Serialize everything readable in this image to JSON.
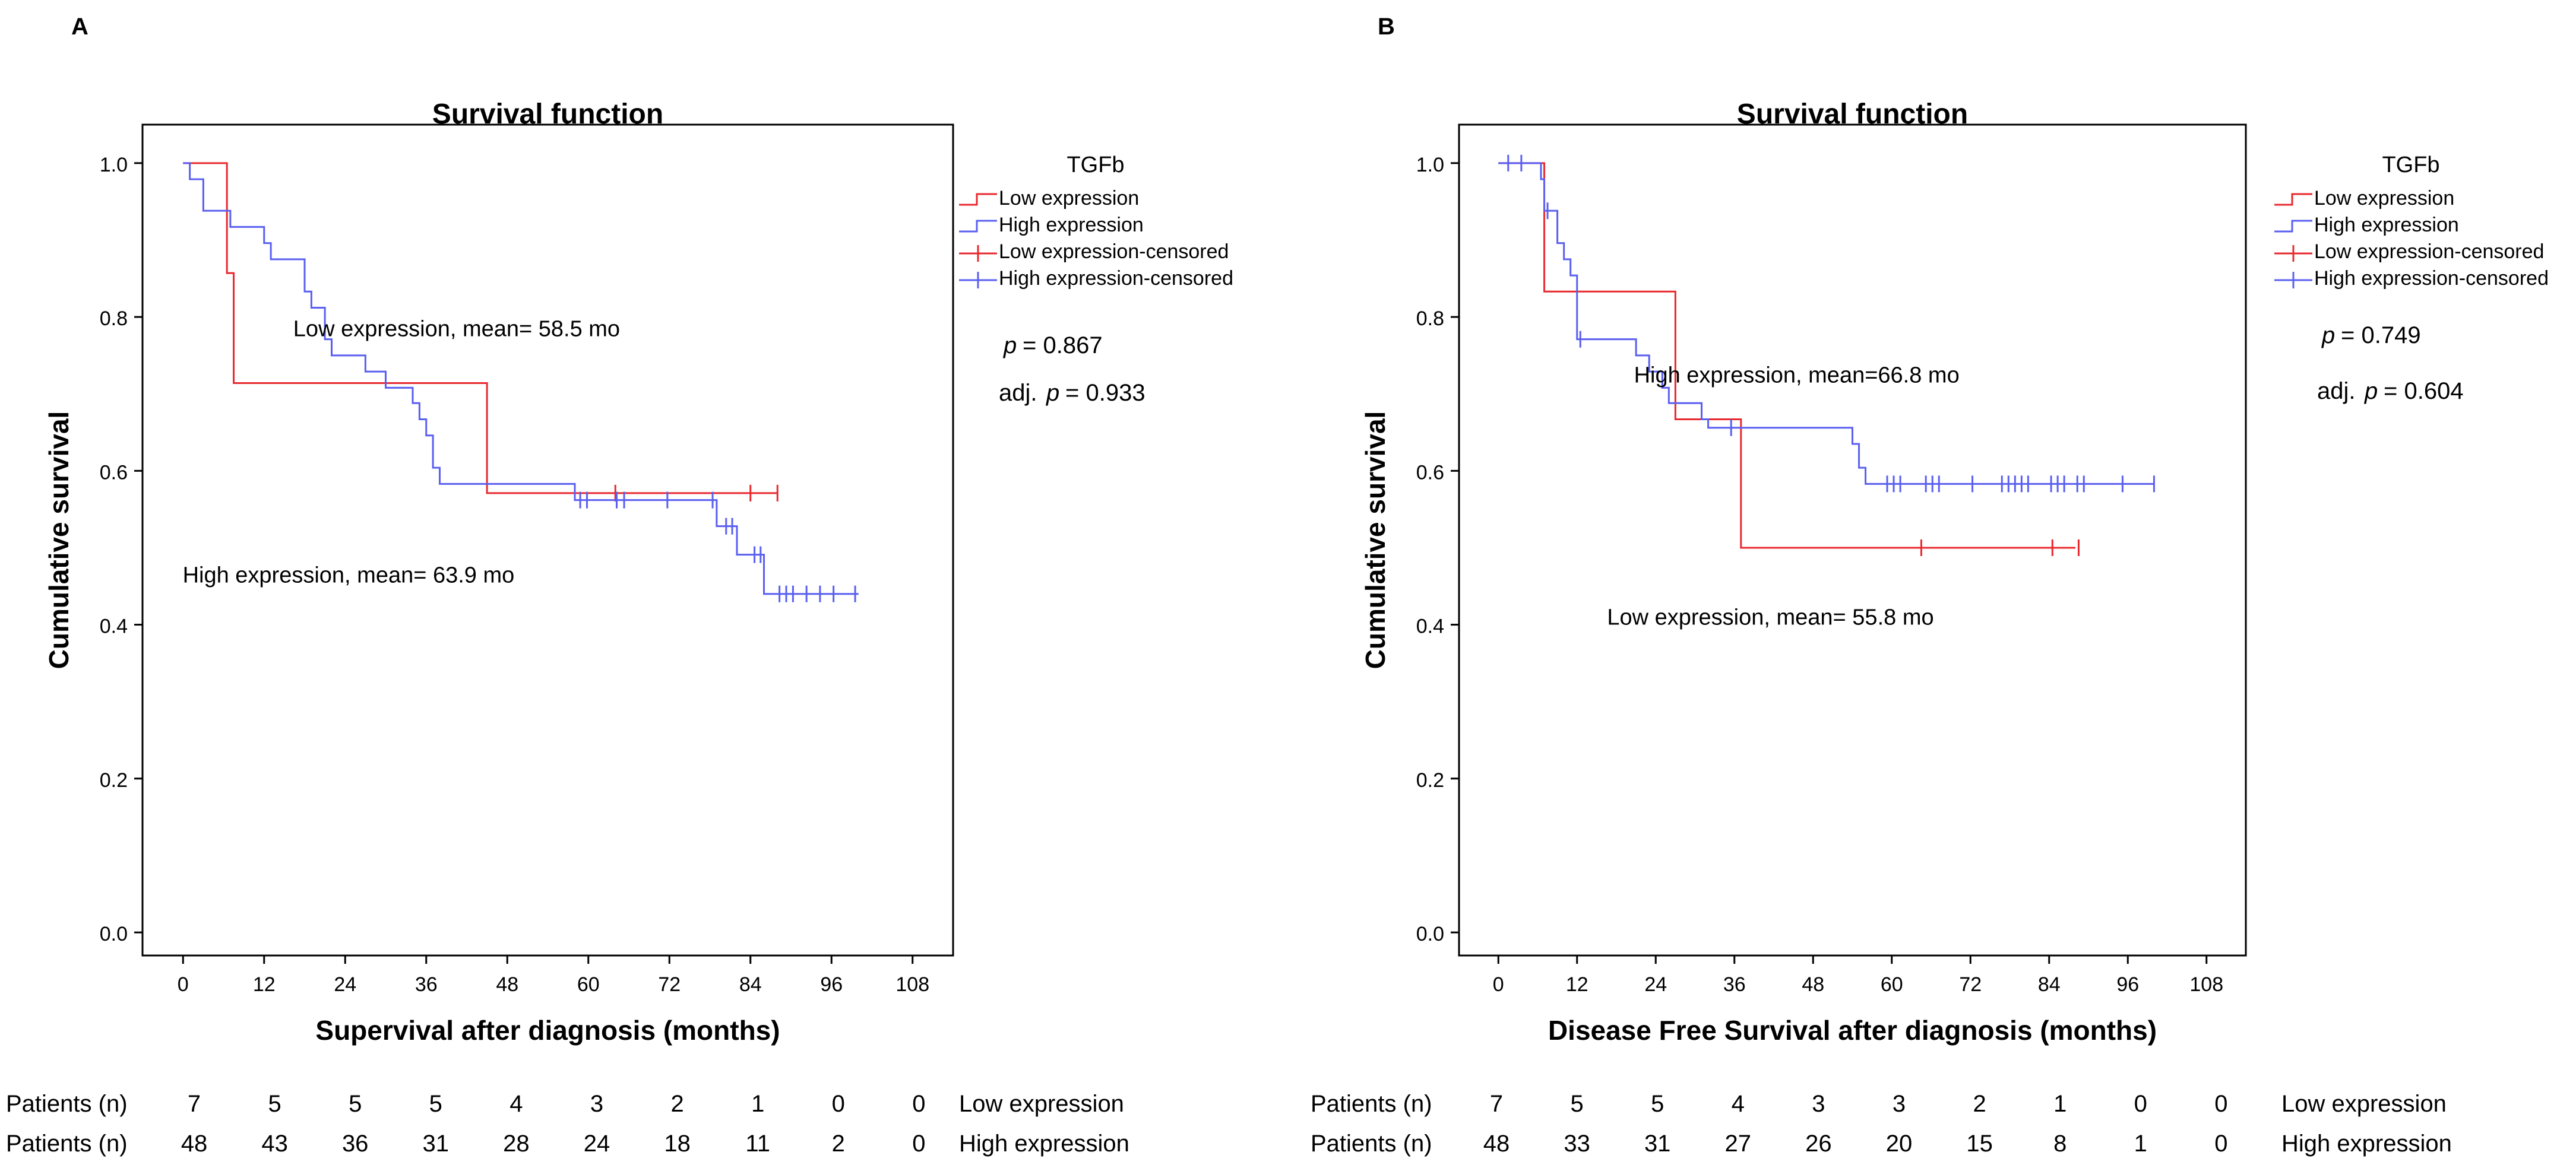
{
  "figure": {
    "y_ticks": [
      "1.0",
      "0.8",
      "0.6",
      "0.4",
      "0.2",
      "0.0"
    ],
    "x_ticks": [
      "0",
      "12",
      "24",
      "36",
      "48",
      "60",
      "72",
      "84",
      "96",
      "108"
    ],
    "legend_title": "TGFb",
    "legend_items": [
      "Low expression",
      "High expression",
      "Low expression-censored",
      "High expression-censored"
    ],
    "row_label": "Patients (n)",
    "colors": {
      "low": "#e8292f",
      "high": "#5a5ff0",
      "axis": "#000000"
    }
  },
  "chart_data": [
    {
      "panel_label": "A",
      "type": "line",
      "subtype": "kaplan-meier",
      "title": "Survival function",
      "xlabel": "Supervival after diagnosis (months)",
      "ylabel": "Cumulative survival",
      "xlim": [
        -6,
        114
      ],
      "ylim": [
        -0.03,
        1.05
      ],
      "p_label": "p",
      "p_value": "= 0.867",
      "adj_prefix": "adj.",
      "adj_p_label": "p",
      "adj_p_value": "= 0.933",
      "annotations": [
        {
          "text": "Low expression, mean= 58.5 mo",
          "x": 40.5,
          "y": 0.775
        },
        {
          "text": "High expression, mean= 63.9 mo",
          "x": 24.5,
          "y": 0.455
        }
      ],
      "series": [
        {
          "name": "Low expression",
          "color_key": "low",
          "steps": [
            [
              0,
              1.0
            ],
            [
              6.5,
              0.857
            ],
            [
              7.5,
              0.714
            ],
            [
              45,
              0.571
            ],
            [
              88,
              0.571
            ]
          ],
          "censored": [
            [
              64,
              0.571
            ],
            [
              84,
              0.571
            ],
            [
              88,
              0.571
            ]
          ]
        },
        {
          "name": "High expression",
          "color_key": "high",
          "steps": [
            [
              0,
              1.0
            ],
            [
              1,
              0.979
            ],
            [
              3,
              0.938
            ],
            [
              7,
              0.917
            ],
            [
              12,
              0.896
            ],
            [
              13,
              0.875
            ],
            [
              18,
              0.833
            ],
            [
              19,
              0.812
            ],
            [
              21,
              0.771
            ],
            [
              22,
              0.75
            ],
            [
              27,
              0.729
            ],
            [
              30,
              0.708
            ],
            [
              34,
              0.688
            ],
            [
              35,
              0.667
            ],
            [
              36,
              0.646
            ],
            [
              37,
              0.604
            ],
            [
              38,
              0.583
            ],
            [
              58,
              0.562
            ],
            [
              79,
              0.528
            ],
            [
              82,
              0.491
            ],
            [
              86,
              0.44
            ],
            [
              100,
              0.44
            ]
          ],
          "censored": [
            [
              58.8,
              0.562
            ],
            [
              59.8,
              0.562
            ],
            [
              64.2,
              0.562
            ],
            [
              65.3,
              0.562
            ],
            [
              71.7,
              0.562
            ],
            [
              78.4,
              0.562
            ],
            [
              80.4,
              0.528
            ],
            [
              81.3,
              0.528
            ],
            [
              84.6,
              0.491
            ],
            [
              85.5,
              0.491
            ],
            [
              88.3,
              0.44
            ],
            [
              89.3,
              0.44
            ],
            [
              90.3,
              0.44
            ],
            [
              92.3,
              0.44
            ],
            [
              94.3,
              0.44
            ],
            [
              96.3,
              0.44
            ],
            [
              99.5,
              0.44
            ]
          ]
        }
      ],
      "risk_table": {
        "rows": [
          {
            "counts": [
              "7",
              "5",
              "5",
              "5",
              "4",
              "3",
              "2",
              "1",
              "0",
              "0"
            ],
            "group": "Low expression"
          },
          {
            "counts": [
              "48",
              "43",
              "36",
              "31",
              "28",
              "24",
              "18",
              "11",
              "2",
              "0"
            ],
            "group": "High expression"
          }
        ]
      }
    },
    {
      "panel_label": "B",
      "type": "line",
      "subtype": "kaplan-meier",
      "title": "Survival function",
      "xlabel": "Disease Free Survival after diagnosis (months)",
      "ylabel": "Cumulative survival",
      "xlim": [
        -6,
        114
      ],
      "ylim": [
        -0.03,
        1.05
      ],
      "p_label": "p",
      "p_value": "= 0.749",
      "adj_prefix": "adj.",
      "adj_p_label": "p",
      "adj_p_value": "= 0.604",
      "annotations": [
        {
          "text": "High expression, mean=66.8 mo",
          "x": 45.5,
          "y": 0.715
        },
        {
          "text": "Low expression, mean= 55.8 mo",
          "x": 41.5,
          "y": 0.4
        }
      ],
      "series": [
        {
          "name": "Low expression",
          "color_key": "low",
          "steps": [
            [
              0,
              1.0
            ],
            [
              7,
              0.833
            ],
            [
              27,
              0.667
            ],
            [
              37,
              0.5
            ],
            [
              88,
              0.5
            ]
          ],
          "censored": [
            [
              64.5,
              0.5
            ],
            [
              84.5,
              0.5
            ],
            [
              88.5,
              0.5
            ]
          ]
        },
        {
          "name": "High expression",
          "color_key": "high",
          "steps": [
            [
              0,
              1.0
            ],
            [
              6.5,
              0.979
            ],
            [
              7,
              0.938
            ],
            [
              9,
              0.896
            ],
            [
              10,
              0.875
            ],
            [
              11,
              0.854
            ],
            [
              12,
              0.771
            ],
            [
              21,
              0.75
            ],
            [
              23,
              0.729
            ],
            [
              25,
              0.708
            ],
            [
              26,
              0.688
            ],
            [
              31,
              0.667
            ],
            [
              32,
              0.656
            ],
            [
              54,
              0.635
            ],
            [
              55,
              0.604
            ],
            [
              56,
              0.583
            ],
            [
              100,
              0.583
            ]
          ],
          "censored": [
            [
              1.5,
              1.0
            ],
            [
              3.5,
              1.0
            ],
            [
              7.5,
              0.938
            ],
            [
              12.5,
              0.771
            ],
            [
              35.5,
              0.656
            ],
            [
              59.3,
              0.583
            ],
            [
              60.3,
              0.583
            ],
            [
              61.3,
              0.583
            ],
            [
              65.2,
              0.583
            ],
            [
              66.2,
              0.583
            ],
            [
              67.2,
              0.583
            ],
            [
              72.3,
              0.583
            ],
            [
              76.8,
              0.583
            ],
            [
              77.8,
              0.583
            ],
            [
              78.8,
              0.583
            ],
            [
              79.8,
              0.583
            ],
            [
              80.8,
              0.583
            ],
            [
              84.3,
              0.583
            ],
            [
              85.3,
              0.583
            ],
            [
              86.3,
              0.583
            ],
            [
              88.3,
              0.583
            ],
            [
              89.3,
              0.583
            ],
            [
              95.2,
              0.583
            ],
            [
              100,
              0.583
            ]
          ]
        }
      ],
      "risk_table": {
        "rows": [
          {
            "counts": [
              "7",
              "5",
              "5",
              "4",
              "3",
              "3",
              "2",
              "1",
              "0",
              "0"
            ],
            "group": "Low expression"
          },
          {
            "counts": [
              "48",
              "33",
              "31",
              "27",
              "26",
              "20",
              "15",
              "8",
              "1",
              "0"
            ],
            "group": "High expression"
          }
        ]
      }
    }
  ]
}
